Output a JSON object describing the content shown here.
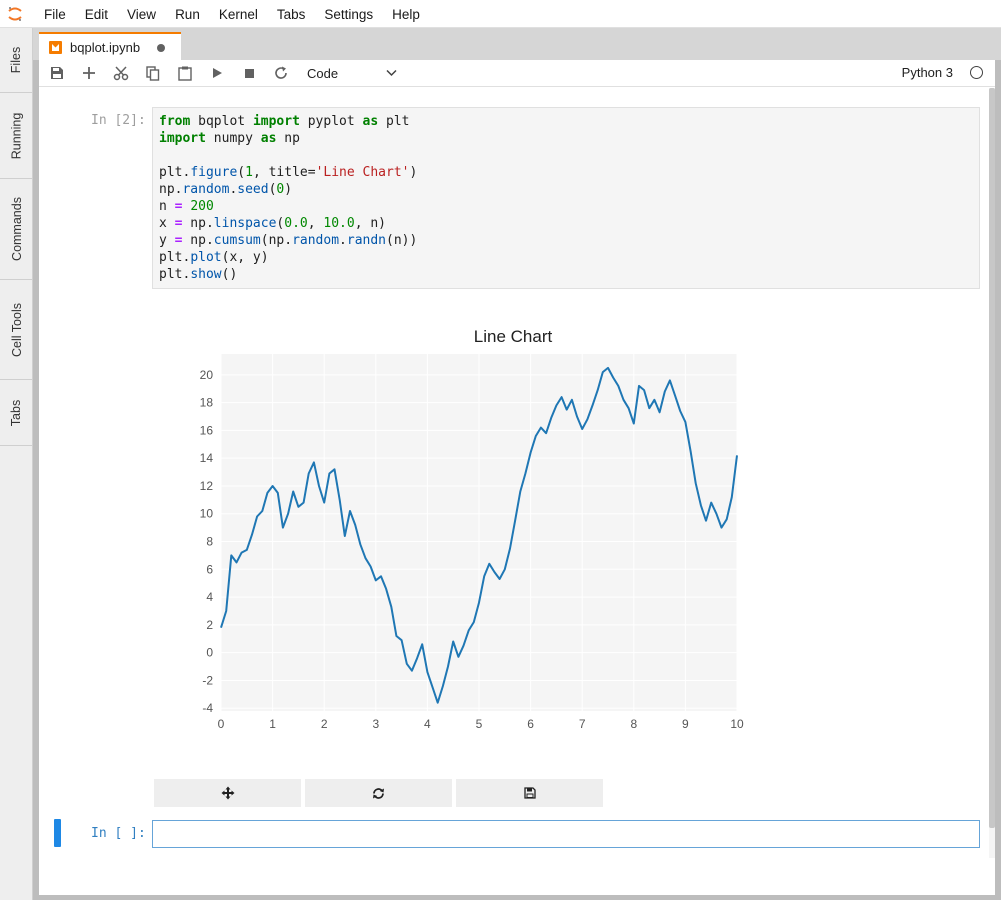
{
  "menu": [
    "File",
    "Edit",
    "View",
    "Run",
    "Kernel",
    "Tabs",
    "Settings",
    "Help"
  ],
  "sidebar": [
    "Files",
    "Running",
    "Commands",
    "Cell Tools",
    "Tabs"
  ],
  "tab": {
    "label": "bqplot.ipynb",
    "unsaved": true
  },
  "toolbar": {
    "cell_type": "Code",
    "kernel": "Python 3",
    "icons": [
      "save-icon",
      "add-icon",
      "cut-icon",
      "copy-icon",
      "paste-icon",
      "run-icon",
      "stop-icon",
      "restart-icon"
    ]
  },
  "cell1": {
    "prompt": "In [2]:",
    "code": [
      "from bqplot import pyplot as plt",
      "import numpy as np",
      "",
      "plt.figure(1, title='Line Chart')",
      "np.random.seed(0)",
      "n = 200",
      "x = np.linspace(0.0, 10.0, n)",
      "y = np.cumsum(np.random.randn(n))",
      "plt.plot(x, y)",
      "plt.show()"
    ]
  },
  "cell2": {
    "prompt": "In [ ]:"
  },
  "figure_buttons": [
    "pan-zoom-icon",
    "reset-icon",
    "save-figure-icon"
  ],
  "chart_data": {
    "type": "line",
    "title": "Line Chart",
    "xlim": [
      0,
      10
    ],
    "ylim": [
      -4.2,
      21.5
    ],
    "x_ticks": [
      0,
      1,
      2,
      3,
      4,
      5,
      6,
      7,
      8,
      9,
      10
    ],
    "y_ticks": [
      -4,
      -2,
      0,
      2,
      4,
      6,
      8,
      10,
      12,
      14,
      16,
      18,
      20
    ],
    "grid": true,
    "color": "#1f77b4",
    "x": [
      0,
      0.1,
      0.2,
      0.3,
      0.4,
      0.5,
      0.6,
      0.7,
      0.8,
      0.9,
      1.0,
      1.1,
      1.2,
      1.3,
      1.4,
      1.5,
      1.6,
      1.7,
      1.8,
      1.9,
      2.0,
      2.1,
      2.2,
      2.3,
      2.4,
      2.5,
      2.6,
      2.7,
      2.8,
      2.9,
      3.0,
      3.1,
      3.2,
      3.3,
      3.4,
      3.5,
      3.6,
      3.7,
      3.8,
      3.9,
      4.0,
      4.1,
      4.2,
      4.3,
      4.4,
      4.5,
      4.6,
      4.7,
      4.8,
      4.9,
      5.0,
      5.1,
      5.2,
      5.3,
      5.4,
      5.5,
      5.6,
      5.7,
      5.8,
      5.9,
      6.0,
      6.1,
      6.2,
      6.3,
      6.4,
      6.5,
      6.6,
      6.7,
      6.8,
      6.9,
      7.0,
      7.1,
      7.2,
      7.3,
      7.4,
      7.5,
      7.6,
      7.7,
      7.8,
      7.9,
      8.0,
      8.1,
      8.2,
      8.3,
      8.4,
      8.5,
      8.6,
      8.7,
      8.8,
      8.9,
      9.0,
      9.1,
      9.2,
      9.3,
      9.4,
      9.5,
      9.6,
      9.7,
      9.8,
      9.9,
      10.0
    ],
    "values": [
      1.8,
      3.0,
      7.0,
      6.5,
      7.2,
      7.4,
      8.5,
      9.8,
      10.2,
      11.5,
      12.0,
      11.5,
      9.0,
      10.0,
      11.6,
      10.5,
      10.8,
      12.9,
      13.7,
      12.0,
      10.8,
      12.9,
      13.2,
      11.0,
      8.4,
      10.2,
      9.2,
      7.8,
      6.8,
      6.2,
      5.2,
      5.5,
      4.6,
      3.3,
      1.2,
      0.9,
      -0.8,
      -1.3,
      -0.4,
      0.6,
      -1.4,
      -2.5,
      -3.6,
      -2.4,
      -1.0,
      0.8,
      -0.3,
      0.5,
      1.6,
      2.2,
      3.6,
      5.5,
      6.4,
      5.8,
      5.3,
      6.0,
      7.5,
      9.5,
      11.6,
      12.9,
      14.4,
      15.6,
      16.2,
      15.8,
      16.9,
      17.8,
      18.4,
      17.5,
      18.2,
      17.0,
      16.1,
      16.8,
      17.8,
      18.9,
      20.2,
      20.5,
      19.8,
      19.2,
      18.2,
      17.6,
      16.5,
      19.2,
      18.9,
      17.6,
      18.2,
      17.3,
      18.8,
      19.6,
      18.5,
      17.4,
      16.6,
      14.5,
      12.2,
      10.6,
      9.5,
      10.8,
      10.0,
      9.0,
      9.6,
      11.2,
      14.2
    ]
  }
}
